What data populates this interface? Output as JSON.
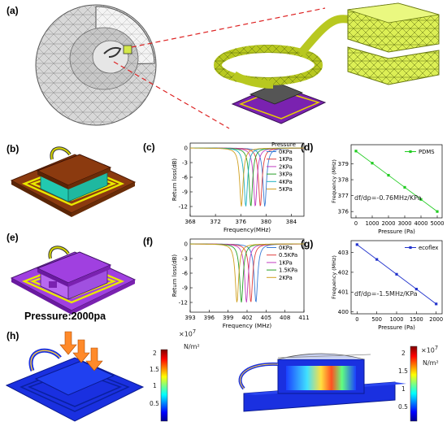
{
  "labels": {
    "a": "(a)",
    "b": "(b)",
    "c": "(c)",
    "d": "(d)",
    "e": "(e)",
    "f": "(f)",
    "g": "(g)",
    "h": "(h)"
  },
  "h_panel": {
    "pressure": "Pressure:2000pa",
    "cb_multiplier": "×10",
    "cb_exp": "7",
    "cb_unit": "N/m²",
    "cb_ticks": [
      "2",
      "1.5",
      "1",
      "0.5"
    ]
  },
  "colors": {
    "pressure_series": [
      "#3a7bd5",
      "#e04040",
      "#c040c0",
      "#28a028",
      "#20b0c0",
      "#d0a020"
    ],
    "pdms": "#22cc22",
    "ecoflex": "#2233cc",
    "substrate_b": "#8b3a0f",
    "substrate_e": "#9933cc",
    "coil": "#ffff00"
  },
  "chart_data": [
    {
      "id": "c",
      "type": "line",
      "xlabel": "Frequency(MHz)",
      "ylabel": "Return loss(dB)",
      "xlim": [
        368,
        386
      ],
      "ylim": [
        -14,
        1
      ],
      "xticks": [
        "368",
        "372",
        "376",
        "380",
        "384"
      ],
      "yticks": [
        "0",
        "-3",
        "-6",
        "-9",
        "-12"
      ],
      "legend_title": "Pressure",
      "series": [
        {
          "name": "0KPa",
          "center": 379.8,
          "min": -12
        },
        {
          "name": "1KPa",
          "center": 379.1,
          "min": -12
        },
        {
          "name": "2KPa",
          "center": 378.3,
          "min": -12
        },
        {
          "name": "3KPa",
          "center": 377.6,
          "min": -12
        },
        {
          "name": "4KPa",
          "center": 376.8,
          "min": -12
        },
        {
          "name": "5KPa",
          "center": 376.1,
          "min": -12
        }
      ]
    },
    {
      "id": "d",
      "type": "line",
      "xlabel": "Pressure (Pa)",
      "ylabel": "Frequency (MHz)",
      "xlim": [
        -300,
        5300
      ],
      "ylim": [
        375.6,
        380.2
      ],
      "xticks": [
        "0",
        "1000",
        "2000",
        "3000",
        "4000",
        "5000"
      ],
      "yticks": [
        "376",
        "377",
        "378",
        "379"
      ],
      "legend": "PDMS",
      "annotation": "df/dp=-0.76MHz/KPa",
      "x": [
        0,
        1000,
        2000,
        3000,
        4000,
        5000
      ],
      "y": [
        379.8,
        379.04,
        378.28,
        377.52,
        376.76,
        376.0
      ]
    },
    {
      "id": "f",
      "type": "line",
      "xlabel": "Frequency (MHz)",
      "ylabel": "Return loss(dB)",
      "xlim": [
        393,
        411
      ],
      "ylim": [
        -14,
        1
      ],
      "xticks": [
        "393",
        "396",
        "399",
        "402",
        "405",
        "408",
        "411"
      ],
      "yticks": [
        "0",
        "-3",
        "-6",
        "-9",
        "-12"
      ],
      "series": [
        {
          "name": "0KPa",
          "center": 403.4,
          "min": -12
        },
        {
          "name": "0.5KPa",
          "center": 402.6,
          "min": -12
        },
        {
          "name": "1KPa",
          "center": 401.9,
          "min": -12
        },
        {
          "name": "1.5KPa",
          "center": 401.1,
          "min": -12
        },
        {
          "name": "2KPa",
          "center": 400.4,
          "min": -12
        }
      ]
    },
    {
      "id": "g",
      "type": "line",
      "xlabel": "Pressure (Pa)",
      "ylabel": "Frequency (MHz)",
      "xlim": [
        -150,
        2150
      ],
      "ylim": [
        399.9,
        403.6
      ],
      "xticks": [
        "0",
        "500",
        "1000",
        "1500",
        "2000"
      ],
      "yticks": [
        "400",
        "401",
        "402",
        "403"
      ],
      "legend": "ecoflex",
      "annotation": "df/dp=-1.5MHz/KPa",
      "x": [
        0,
        500,
        1000,
        1500,
        2000
      ],
      "y": [
        403.4,
        402.65,
        401.9,
        401.15,
        400.4
      ]
    }
  ]
}
